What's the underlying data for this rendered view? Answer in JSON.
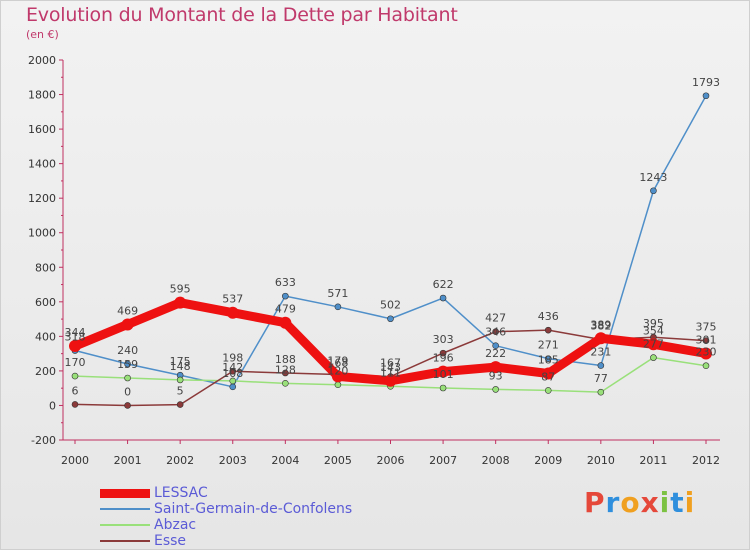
{
  "header": {
    "title": "Evolution du Montant de la Dette par Habitant",
    "unit": "(en €)"
  },
  "logo": {
    "letters": [
      "P",
      "r",
      "o",
      "x",
      "i",
      "t",
      "i"
    ],
    "colors": [
      "#e5483a",
      "#2f8fdd",
      "#f0a020",
      "#e5483a",
      "#7cc242",
      "#2f8fdd",
      "#f0a020"
    ]
  },
  "chart_data": {
    "type": "line",
    "title": "Evolution du Montant de la Dette par Habitant",
    "ylabel": "(en €)",
    "xlabel": "",
    "ylim": [
      -200,
      2000
    ],
    "yticks": [
      -200,
      0,
      200,
      400,
      600,
      800,
      1000,
      1200,
      1400,
      1600,
      1800,
      2000
    ],
    "grid": false,
    "legend_position": "bottom-left",
    "categories": [
      "2000",
      "2001",
      "2002",
      "2003",
      "2004",
      "2005",
      "2006",
      "2007",
      "2008",
      "2009",
      "2010",
      "2011",
      "2012"
    ],
    "series": [
      {
        "name": "Saint-Germain-de-Confolens",
        "color": "#4f8fc9",
        "values": [
          318,
          240,
          175,
          108,
          633,
          571,
          502,
          622,
          346,
          271,
          231,
          1243,
          1793
        ]
      },
      {
        "name": "Abzac",
        "color": "#99e07a",
        "values": [
          170,
          159,
          148,
          142,
          128,
          120,
          111,
          101,
          93,
          87,
          77,
          277,
          230
        ]
      },
      {
        "name": "Esse",
        "color": "#8b3a3a",
        "values": [
          6,
          0,
          5,
          198,
          188,
          179,
          167,
          303,
          427,
          436,
          382,
          395,
          375
        ]
      },
      {
        "name": "LESSAC",
        "color": "#ee1111",
        "values": [
          344,
          469,
          595,
          537,
          479,
          168,
          143,
          196,
          222,
          185,
          389,
          354,
          301
        ]
      }
    ],
    "legend_order": [
      "LESSAC",
      "Saint-Germain-de-Confolens",
      "Abzac",
      "Esse"
    ]
  }
}
